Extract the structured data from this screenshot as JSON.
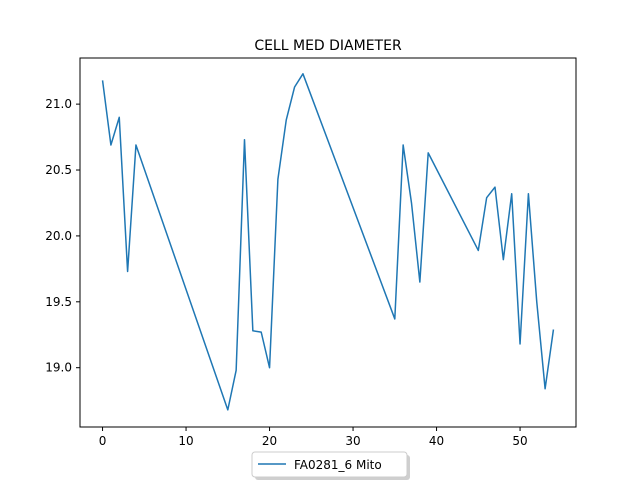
{
  "chart_data": {
    "type": "line",
    "title": "CELL MED DIAMETER",
    "xlabel": "",
    "ylabel": "",
    "xlim": [
      -2.7,
      56.7
    ],
    "ylim": [
      18.55,
      21.35
    ],
    "x_ticks": [
      0,
      10,
      20,
      30,
      40,
      50
    ],
    "y_ticks": [
      19.0,
      19.5,
      20.0,
      20.5,
      21.0
    ],
    "x_tick_labels": [
      "0",
      "10",
      "20",
      "30",
      "40",
      "50"
    ],
    "y_tick_labels": [
      "19.0",
      "19.5",
      "20.0",
      "20.5",
      "21.0"
    ],
    "grid": false,
    "legend_position": "below-center",
    "series": [
      {
        "name": "FA0281_6 Mito",
        "color": "#1f77b4",
        "x": [
          0,
          1,
          2,
          3,
          4,
          15,
          16,
          17,
          18,
          19,
          20,
          21,
          22,
          23,
          24,
          35,
          36,
          37,
          38,
          39,
          45,
          46,
          47,
          48,
          49,
          50,
          51,
          52,
          53,
          54
        ],
        "y": [
          21.18,
          20.69,
          20.9,
          19.73,
          20.69,
          18.68,
          18.98,
          20.73,
          19.28,
          19.27,
          19.0,
          20.43,
          20.88,
          21.13,
          21.23,
          19.37,
          20.69,
          20.25,
          19.65,
          20.63,
          19.89,
          20.29,
          20.37,
          19.82,
          20.32,
          19.18,
          20.32,
          19.5,
          18.84,
          19.29
        ]
      }
    ]
  }
}
